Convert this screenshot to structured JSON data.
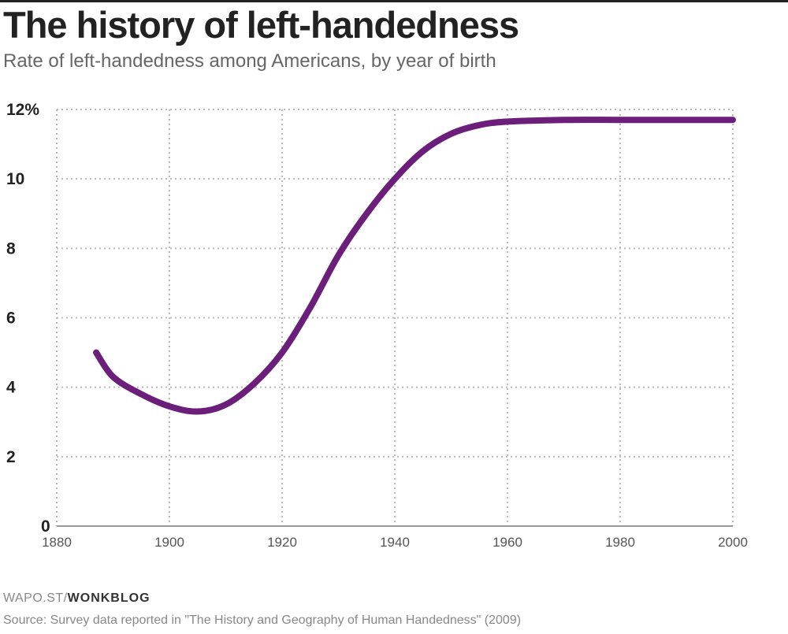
{
  "title": "The history of left-handedness",
  "subtitle": "Rate of left-handedness among Americans, by year of birth",
  "credit": {
    "prefix": "WAPO.ST/",
    "strong": "WONKBLOG"
  },
  "source": "Source: Survey data reported in \"The History and Geography of Human Handedness\" (2009)",
  "colors": {
    "line": "#6b1e7a",
    "grid": "#bbbbbb",
    "axis": "#999999"
  },
  "chart_data": {
    "type": "line",
    "title": "The history of left-handedness",
    "xlabel": "",
    "ylabel": "",
    "xlim": [
      1880,
      2000
    ],
    "ylim": [
      0,
      12
    ],
    "x_ticks": [
      1880,
      1900,
      1920,
      1940,
      1960,
      1980,
      2000
    ],
    "y_ticks": [
      0,
      2,
      4,
      6,
      8,
      10,
      12
    ],
    "y_tick_labels": [
      "0",
      "2",
      "4",
      "6",
      "8",
      "10",
      "12%"
    ],
    "grid": true,
    "legend": "none",
    "series": [
      {
        "x": [
          1887,
          1890,
          1895,
          1900,
          1905,
          1910,
          1915,
          1920,
          1925,
          1930,
          1935,
          1940,
          1945,
          1950,
          1955,
          1960,
          1970,
          1980,
          1990,
          2000
        ],
        "y": [
          5.0,
          4.3,
          3.8,
          3.45,
          3.3,
          3.5,
          4.1,
          5.0,
          6.3,
          7.8,
          9.0,
          10.0,
          10.8,
          11.3,
          11.55,
          11.65,
          11.7,
          11.7,
          11.7,
          11.7
        ]
      }
    ]
  }
}
